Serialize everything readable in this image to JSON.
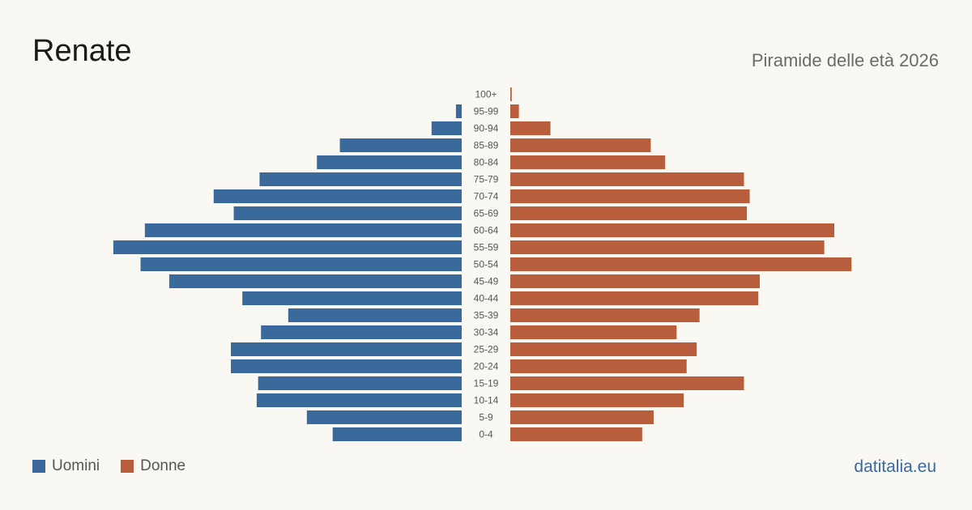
{
  "header": {
    "title": "Renate",
    "subtitle": "Piramide delle età 2026"
  },
  "legend": {
    "men_label": "Uomini",
    "women_label": "Donne"
  },
  "footer": {
    "brand": "datitalia.eu"
  },
  "colors": {
    "men": "#3a6a9b",
    "women": "#b95e3c",
    "label": "#555555"
  },
  "chart_data": {
    "type": "bar",
    "orientation": "horizontal-pyramid",
    "categories": [
      "100+",
      "95-99",
      "90-94",
      "85-89",
      "80-84",
      "75-79",
      "70-74",
      "65-69",
      "60-64",
      "55-59",
      "50-54",
      "45-49",
      "40-44",
      "35-39",
      "30-34",
      "25-29",
      "20-24",
      "15-19",
      "10-14",
      "5-9",
      "0-4"
    ],
    "series": [
      {
        "name": "Uomini",
        "values": [
          0,
          4,
          21,
          85,
          101,
          141,
          173,
          159,
          221,
          243,
          224,
          204,
          153,
          121,
          140,
          161,
          161,
          142,
          143,
          108,
          90
        ]
      },
      {
        "name": "Donne",
        "values": [
          1,
          6,
          28,
          98,
          108,
          163,
          167,
          165,
          226,
          219,
          238,
          174,
          173,
          132,
          116,
          130,
          123,
          163,
          121,
          100,
          92
        ]
      }
    ],
    "legend_position": "bottom-left",
    "grid": false
  }
}
